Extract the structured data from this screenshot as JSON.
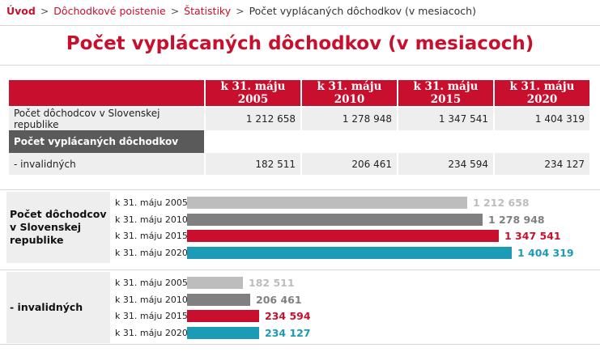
{
  "breadcrumb": {
    "home": "Úvod",
    "sep": ">",
    "item1": "Dôchodkové poistenie",
    "item2": "Štatistiky",
    "current": "Počet vyplácaných dôchodkov (v mesiacoch)"
  },
  "title": "Počet vyplácaných dôchodkov (v mesiacoch)",
  "table": {
    "headers": [
      "k 31. máju 2005",
      "k 31. máju 2010",
      "k 31. máju 2015",
      "k 31. máju 2020"
    ],
    "row1": {
      "label": "Počet dôchodcov v Slovenskej republike",
      "values": [
        "1 212 658",
        "1 278 948",
        "1 347 541",
        "1 404 319"
      ]
    },
    "section": "Počet vyplácaných dôchodkov",
    "row2": {
      "label": "- invalidných",
      "values": [
        "182 511",
        "206 461",
        "234 594",
        "234 127"
      ]
    }
  },
  "colors": {
    "accent": "#c8102e",
    "dark_gray": "#5a5a5a",
    "bar_2005": "#bdbdbd",
    "bar_2010": "#808080",
    "bar_2015": "#c8102e",
    "bar_2020": "#1b9bb6"
  },
  "chart_data": [
    {
      "type": "bar",
      "orientation": "horizontal",
      "group_label": "Počet dôchodcov v Slovenskej republike",
      "categories": [
        "k 31. máju 2005",
        "k 31. máju 2010",
        "k 31. máju 2015",
        "k 31. máju 2020"
      ],
      "values": [
        1212658,
        1278948,
        1347541,
        1404319
      ],
      "value_labels": [
        "1 212 658",
        "1 278 948",
        "1 347 541",
        "1 404 319"
      ],
      "xlim": [
        0,
        1404319
      ]
    },
    {
      "type": "bar",
      "orientation": "horizontal",
      "group_label": "- invalidných",
      "categories": [
        "k 31. máju 2005",
        "k 31. máju 2010",
        "k 31. máju 2015",
        "k 31. máju 2020"
      ],
      "values": [
        182511,
        206461,
        234594,
        234127
      ],
      "value_labels": [
        "182 511",
        "206 461",
        "234 594",
        "234 127"
      ],
      "xlim": [
        0,
        234594
      ]
    }
  ]
}
